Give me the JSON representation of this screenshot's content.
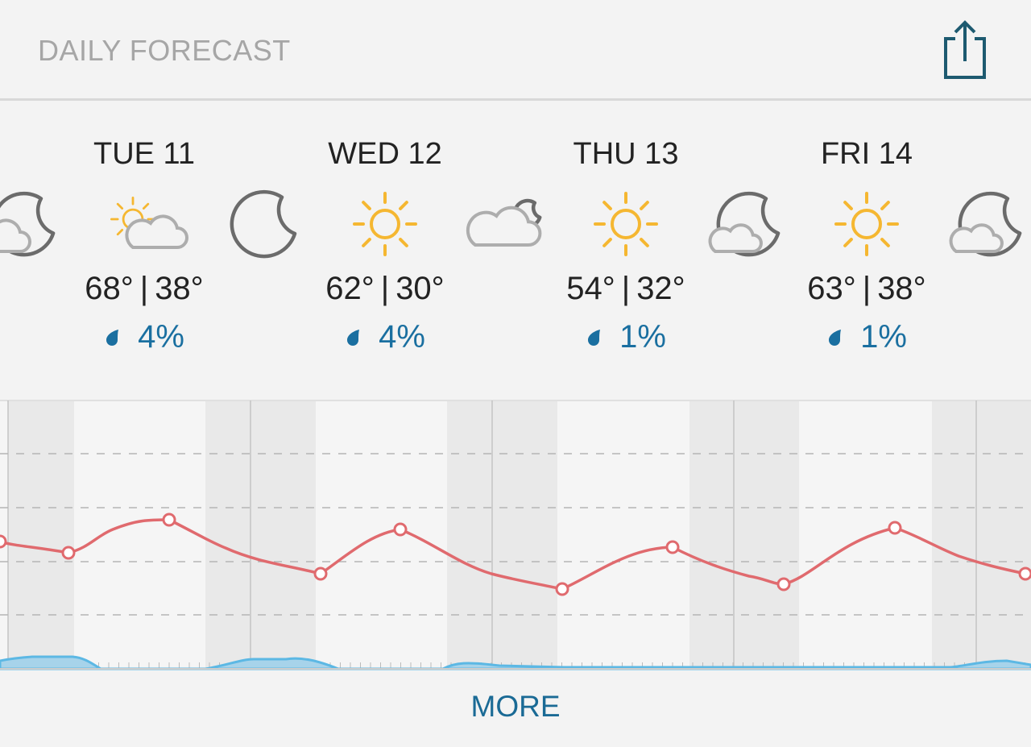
{
  "header": {
    "title": "DAILY FORECAST"
  },
  "days": [
    {
      "label": "TUE 11",
      "high": "68°",
      "separator": "|",
      "low": "38°",
      "precip": "4%"
    },
    {
      "label": "WED 12",
      "high": "62°",
      "separator": "|",
      "low": "30°",
      "precip": "4%"
    },
    {
      "label": "THU 13",
      "high": "54°",
      "separator": "|",
      "low": "32°",
      "precip": "1%"
    },
    {
      "label": "FRI 14",
      "high": "63°",
      "separator": "|",
      "low": "38°",
      "precip": "1%"
    }
  ],
  "more": "MORE"
}
